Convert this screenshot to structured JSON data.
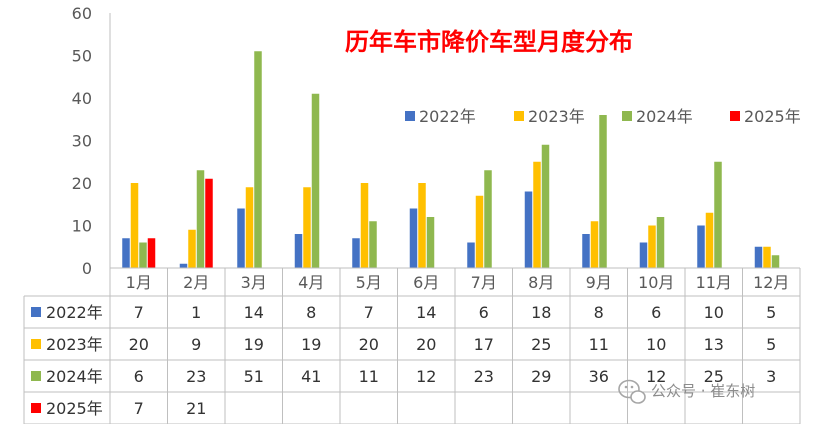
{
  "chart_data": {
    "type": "bar",
    "title": "历年车市降价车型月度分布",
    "categories": [
      "1月",
      "2月",
      "3月",
      "4月",
      "5月",
      "6月",
      "7月",
      "8月",
      "9月",
      "10月",
      "11月",
      "12月"
    ],
    "ylim": [
      0,
      60
    ],
    "yticks": [
      "0",
      "10",
      "20",
      "30",
      "40",
      "50",
      "60"
    ],
    "grid": false,
    "legend_position": "top-right",
    "series": [
      {
        "name": "2022年",
        "color": "#4472c4",
        "values": [
          7,
          1,
          14,
          8,
          7,
          14,
          6,
          18,
          8,
          6,
          10,
          5
        ]
      },
      {
        "name": "2023年",
        "color": "#ffc000",
        "values": [
          20,
          9,
          19,
          19,
          20,
          20,
          17,
          25,
          11,
          10,
          13,
          5
        ]
      },
      {
        "name": "2024年",
        "color": "#8fb84f",
        "values": [
          6,
          23,
          51,
          41,
          11,
          12,
          23,
          29,
          36,
          12,
          25,
          3
        ]
      },
      {
        "name": "2025年",
        "color": "#ff0000",
        "values": [
          7,
          21,
          null,
          null,
          null,
          null,
          null,
          null,
          null,
          null,
          null,
          null
        ]
      }
    ],
    "data_table": true
  },
  "watermark": {
    "text": "公众号 · 崔东树",
    "icon": "wechat-icon"
  }
}
